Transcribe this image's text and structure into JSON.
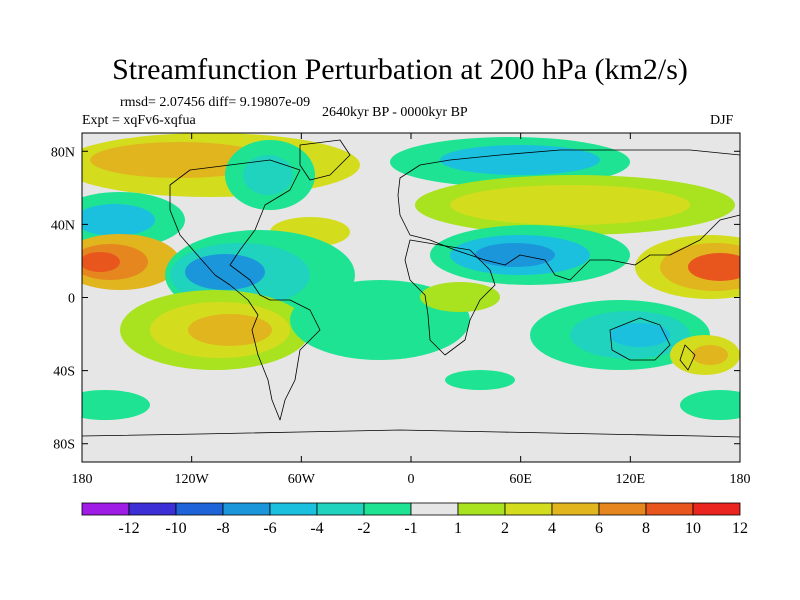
{
  "title": "Streamfunction Perturbation at 200 hPa (km2/s)",
  "stats": "rmsd= 2.07456 diff= 9.19807e-09",
  "experiment": "Expt = xqFv6-xqfua",
  "period": "2640kyr BP - 0000kyr BP",
  "season": "DJF",
  "chart_data": {
    "type": "filled-contour-map",
    "projection": "cylindrical equidistant",
    "lon_range": [
      -180,
      180
    ],
    "lat_range": [
      -90,
      90
    ],
    "x_ticks": [
      "180",
      "120W",
      "60W",
      "0",
      "60E",
      "120E",
      "180"
    ],
    "x_tick_values": [
      -180,
      -120,
      -60,
      0,
      60,
      120,
      180
    ],
    "y_ticks": [
      "80N",
      "40N",
      "0",
      "40S",
      "80S"
    ],
    "y_tick_values": [
      80,
      40,
      0,
      -40,
      -80
    ],
    "colorbar_labels": [
      "-12",
      "-10",
      "-8",
      "-6",
      "-4",
      "-2",
      "-1",
      "1",
      "2",
      "4",
      "6",
      "8",
      "10",
      "12"
    ],
    "colorbar_colors": [
      "#9f1ce6",
      "#3c2fd6",
      "#1f63d8",
      "#1c96da",
      "#1cc0df",
      "#20d3be",
      "#1ee392",
      "#e6e6e6",
      "#a9e21e",
      "#d3dd1e",
      "#e0b51e",
      "#e5861e",
      "#e8561e",
      "#ea241e"
    ],
    "regions": [
      {
        "name": "north-pacific-ridge",
        "sign": "positive",
        "max_level": 10,
        "lon": [
          -180,
          -140
        ],
        "lat": [
          0,
          35
        ]
      },
      {
        "name": "north-pacific-low",
        "sign": "negative",
        "max_level": -4,
        "lon": [
          -180,
          -140
        ],
        "lat": [
          30,
          55
        ]
      },
      {
        "name": "east-pacific-ridge",
        "sign": "positive",
        "max_level": 12,
        "lon": [
          140,
          180
        ],
        "lat": [
          0,
          35
        ]
      },
      {
        "name": "north-america-high",
        "sign": "positive",
        "max_level": 4,
        "lon": [
          -180,
          -100
        ],
        "lat": [
          60,
          85
        ]
      },
      {
        "name": "greenland-arctic-low",
        "sign": "negative",
        "max_level": -4,
        "lon": [
          -90,
          -50
        ],
        "lat": [
          55,
          80
        ]
      },
      {
        "name": "caribbean-low",
        "sign": "negative",
        "max_level": -6,
        "lon": [
          -110,
          -60
        ],
        "lat": [
          5,
          30
        ]
      },
      {
        "name": "south-america-ridge",
        "sign": "positive",
        "max_level": 8,
        "lon": [
          -130,
          -80
        ],
        "lat": [
          -35,
          -10
        ]
      },
      {
        "name": "atlantic-south-low",
        "sign": "negative",
        "max_level": -2,
        "lon": [
          -40,
          20
        ],
        "lat": [
          -45,
          -5
        ]
      },
      {
        "name": "eurasia-arctic-low",
        "sign": "negative",
        "max_level": -4,
        "lon": [
          -10,
          60
        ],
        "lat": [
          60,
          85
        ]
      },
      {
        "name": "eurasia-ridge",
        "sign": "positive",
        "max_level": 6,
        "lon": [
          20,
          120
        ],
        "lat": [
          35,
          65
        ]
      },
      {
        "name": "arabia-india-low",
        "sign": "negative",
        "max_level": -6,
        "lon": [
          20,
          90
        ],
        "lat": [
          5,
          35
        ]
      },
      {
        "name": "east-africa-high",
        "sign": "positive",
        "max_level": 2,
        "lon": [
          10,
          40
        ],
        "lat": [
          -10,
          5
        ]
      },
      {
        "name": "indian-ocean-low",
        "sign": "negative",
        "max_level": -4,
        "lon": [
          60,
          140
        ],
        "lat": [
          -45,
          -15
        ]
      },
      {
        "name": "southern-ocean-high",
        "sign": "positive",
        "max_level": 6,
        "lon": [
          140,
          180
        ],
        "lat": [
          -45,
          -25
        ]
      },
      {
        "name": "southern-pacific-low",
        "sign": "negative",
        "max_level": -2,
        "lon": [
          -180,
          -150
        ],
        "lat": [
          -70,
          -50
        ]
      },
      {
        "name": "southern-indian-low",
        "sign": "negative",
        "max_level": -2,
        "lon": [
          140,
          180
        ],
        "lat": [
          -70,
          -50
        ]
      }
    ]
  }
}
